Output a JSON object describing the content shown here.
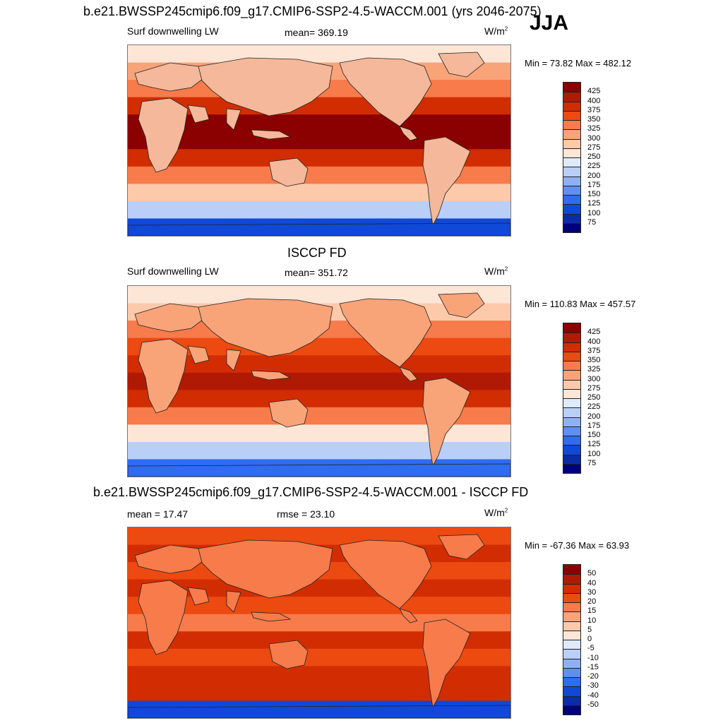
{
  "season": "JJA",
  "panels": [
    {
      "title": "b.e21.BWSSP245cmip6.f09_g17.CMIP6-SSP2-4.5-WACCM.001 (yrs 2046-2075)",
      "left_label": "Surf downwelling LW",
      "center_label": "mean= 369.19",
      "unit_base": "W/m",
      "unit_sup": "2",
      "minmax": "Min =  73.82 Max = 482.12",
      "colorbar": {
        "labels": [
          "425",
          "400",
          "375",
          "350",
          "325",
          "300",
          "275",
          "250",
          "225",
          "200",
          "175",
          "150",
          "125",
          "100",
          "75"
        ],
        "colors": [
          "#8b0000",
          "#b01a05",
          "#d22d02",
          "#ec4a10",
          "#f77b4b",
          "#f9a379",
          "#fcc9ab",
          "#fde6d6",
          "#dfeafa",
          "#b9cff7",
          "#8fb1f3",
          "#5f8ff0",
          "#2e6cf0",
          "#1048d8",
          "#0a2ca8",
          "#00007f"
        ]
      },
      "map": {
        "land_color": "#f5b89a",
        "ocean_gradient": [
          "#fde6d6",
          "#f9a379",
          "#f77b4b",
          "#d22d02",
          "#8b0000",
          "#8b0000",
          "#d22d02",
          "#f77b4b",
          "#fcc9ab",
          "#b9cff7",
          "#1048d8"
        ]
      }
    },
    {
      "title": "ISCCP FD",
      "left_label": "Surf downwelling LW",
      "center_label": "mean= 351.72",
      "unit_base": "W/m",
      "unit_sup": "2",
      "minmax": "Min = 110.83 Max = 457.57",
      "colorbar": {
        "labels": [
          "425",
          "400",
          "375",
          "350",
          "325",
          "300",
          "275",
          "250",
          "225",
          "200",
          "175",
          "150",
          "125",
          "100",
          "75"
        ],
        "colors": [
          "#8b0000",
          "#b01a05",
          "#d22d02",
          "#ec4a10",
          "#f77b4b",
          "#f9a379",
          "#fcc9ab",
          "#fde6d6",
          "#dfeafa",
          "#b9cff7",
          "#8fb1f3",
          "#5f8ff0",
          "#2e6cf0",
          "#1048d8",
          "#0a2ca8",
          "#00007f"
        ]
      },
      "map": {
        "land_color": "#f9a379",
        "ocean_gradient": [
          "#fde6d6",
          "#fcc9ab",
          "#f77b4b",
          "#ec4a10",
          "#d22d02",
          "#b01a05",
          "#d22d02",
          "#f77b4b",
          "#fde6d6",
          "#b9cff7",
          "#2e6cf0"
        ]
      }
    },
    {
      "title": "b.e21.BWSSP245cmip6.f09_g17.CMIP6-SSP2-4.5-WACCM.001 - ISCCP FD",
      "left_label": "mean =  17.47",
      "center_label": "rmse =  23.10",
      "unit_base": "W/m",
      "unit_sup": "2",
      "minmax": "Min = -67.36 Max =  63.93",
      "colorbar": {
        "labels": [
          "50",
          "40",
          "30",
          "20",
          "15",
          "10",
          "5",
          "0",
          "-5",
          "-10",
          "-15",
          "-20",
          "-30",
          "-40",
          "-50"
        ],
        "colors": [
          "#8b0000",
          "#b01a05",
          "#d22d02",
          "#ec4a10",
          "#f77b4b",
          "#f9a379",
          "#fcc9ab",
          "#fde6d6",
          "#dfeafa",
          "#b9cff7",
          "#8fb1f3",
          "#5f8ff0",
          "#2e6cf0",
          "#1048d8",
          "#0a2ca8",
          "#00007f"
        ]
      },
      "map": {
        "land_color": "#f77b4b",
        "ocean_gradient": [
          "#ec4a10",
          "#d22d02",
          "#ec4a10",
          "#d22d02",
          "#ec4a10",
          "#f77b4b",
          "#d22d02",
          "#ec4a10",
          "#d22d02",
          "#d22d02",
          "#1048d8"
        ]
      }
    }
  ]
}
